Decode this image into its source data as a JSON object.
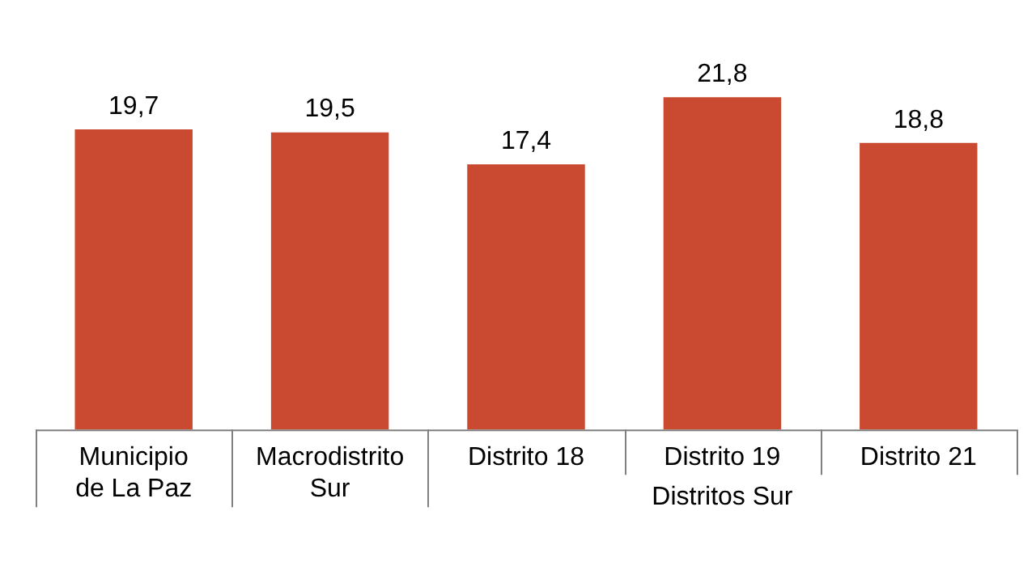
{
  "chart_data": {
    "type": "bar",
    "categories": [
      "Municipio de La Paz",
      "Macrodistrito Sur",
      "Distrito 18",
      "Distrito 19",
      "Distrito 21"
    ],
    "values": [
      19.7,
      19.5,
      17.4,
      21.8,
      18.8
    ],
    "color": "#c94a30",
    "value_labels": [
      "19,7",
      "19,5",
      "17,4",
      "21,8",
      "18,8"
    ],
    "legend": false,
    "annotations": [
      "Distritos Sur"
    ]
  }
}
